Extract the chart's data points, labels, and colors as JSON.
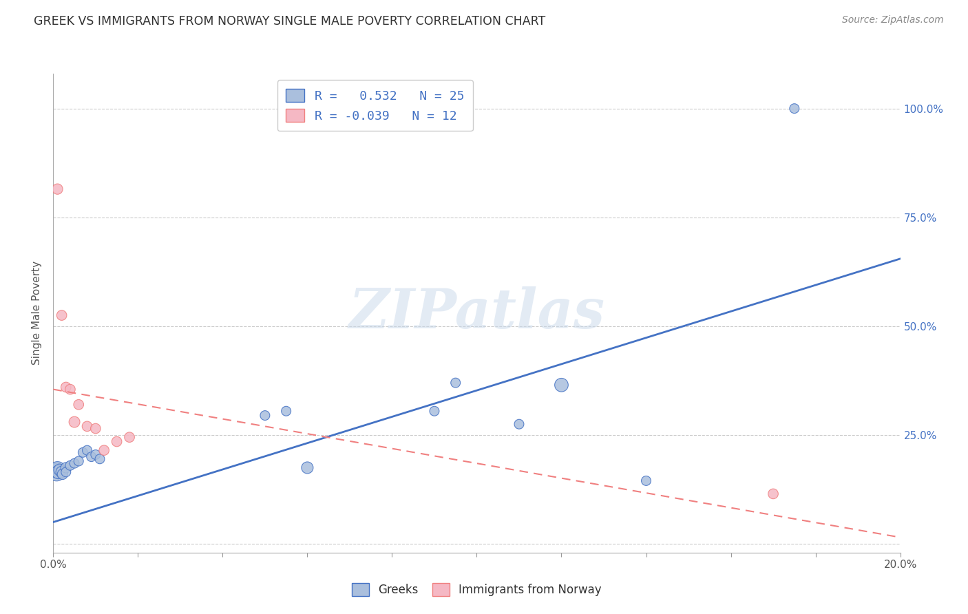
{
  "title": "GREEK VS IMMIGRANTS FROM NORWAY SINGLE MALE POVERTY CORRELATION CHART",
  "source": "Source: ZipAtlas.com",
  "ylabel": "Single Male Poverty",
  "watermark": "ZIPatlas",
  "legend_r1": "R =   0.532   N = 25",
  "legend_r2": "R = -0.039   N = 12",
  "legend_label1": "Greeks",
  "legend_label2": "Immigrants from Norway",
  "blue_color": "#aabfdd",
  "pink_color": "#f5b8c4",
  "blue_line_color": "#4472c4",
  "pink_line_color": "#f08080",
  "xlim": [
    0.0,
    0.2
  ],
  "ylim": [
    -0.02,
    1.08
  ],
  "ytick_positions": [
    0.0,
    0.25,
    0.5,
    0.75,
    1.0
  ],
  "ytick_labels_right": [
    "",
    "25.0%",
    "50.0%",
    "75.0%",
    "100.0%"
  ],
  "blue_scatter_x": [
    0.0008,
    0.001,
    0.0012,
    0.0015,
    0.002,
    0.0022,
    0.003,
    0.003,
    0.004,
    0.005,
    0.006,
    0.007,
    0.008,
    0.009,
    0.01,
    0.011,
    0.05,
    0.055,
    0.06,
    0.09,
    0.095,
    0.11,
    0.12,
    0.14,
    0.175
  ],
  "blue_scatter_y": [
    0.165,
    0.17,
    0.165,
    0.17,
    0.165,
    0.16,
    0.175,
    0.165,
    0.18,
    0.185,
    0.19,
    0.21,
    0.215,
    0.2,
    0.205,
    0.195,
    0.295,
    0.305,
    0.175,
    0.305,
    0.37,
    0.275,
    0.365,
    0.145,
    1.0
  ],
  "blue_scatter_sizes": [
    350,
    300,
    200,
    150,
    150,
    120,
    120,
    100,
    100,
    100,
    100,
    100,
    100,
    100,
    100,
    100,
    100,
    100,
    150,
    100,
    100,
    100,
    200,
    100,
    100
  ],
  "pink_scatter_x": [
    0.001,
    0.002,
    0.003,
    0.004,
    0.005,
    0.006,
    0.008,
    0.01,
    0.012,
    0.015,
    0.018,
    0.17
  ],
  "pink_scatter_y": [
    0.815,
    0.525,
    0.36,
    0.355,
    0.28,
    0.32,
    0.27,
    0.265,
    0.215,
    0.235,
    0.245,
    0.115
  ],
  "pink_scatter_sizes": [
    120,
    110,
    110,
    110,
    130,
    110,
    110,
    110,
    110,
    110,
    110,
    110
  ],
  "blue_line_x": [
    0.0,
    0.2
  ],
  "blue_line_y": [
    0.05,
    0.655
  ],
  "pink_line_x": [
    0.0,
    0.2
  ],
  "pink_line_y": [
    0.355,
    0.015
  ]
}
